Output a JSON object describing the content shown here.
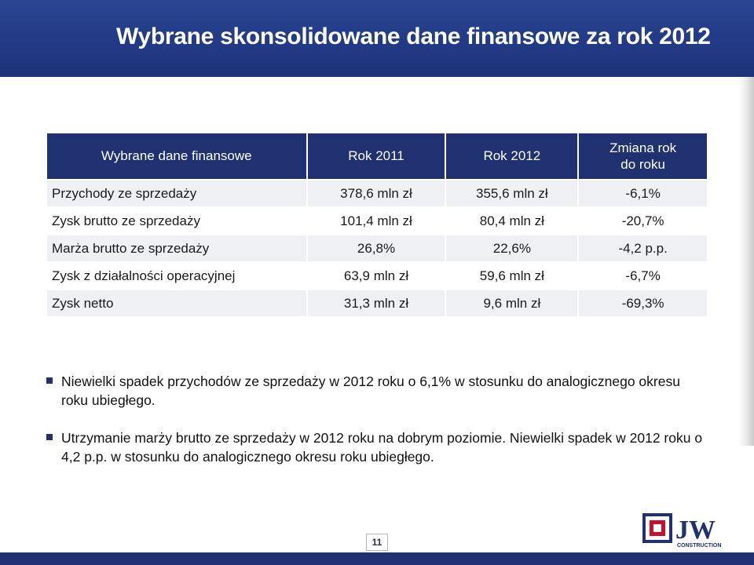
{
  "slide": {
    "title": "Wybrane skonsolidowane dane finansowe za rok 2012",
    "page_number": "11"
  },
  "table": {
    "headers": [
      "Wybrane dane finansowe",
      "Rok 2011",
      "Rok 2012",
      "Zmiana rok",
      "do roku"
    ],
    "rows": [
      [
        "Przychody ze sprzedaży",
        "378,6 mln zł",
        "355,6 mln zł",
        "-6,1%"
      ],
      [
        "Zysk brutto ze sprzedaży",
        "101,4 mln zł",
        "80,4 mln zł",
        "-20,7%"
      ],
      [
        "Marża brutto ze sprzedaży",
        "26,8%",
        "22,6%",
        "-4,2 p.p."
      ],
      [
        "Zysk z działalności operacyjnej",
        "63,9 mln zł",
        "59,6 mln zł",
        "-6,7%"
      ],
      [
        "Zysk netto",
        "31,3 mln zł",
        "9,6 mln zł",
        "-69,3%"
      ]
    ]
  },
  "bullets": [
    "Niewielki spadek przychodów ze sprzedaży w 2012 roku o 6,1% w stosunku do analogicznego okresu roku ubiegłego.",
    "Utrzymanie marży brutto ze sprzedaży w 2012 roku na dobrym poziomie. Niewielki spadek w 2012 roku o 4,2 p.p. w stosunku do analogicznego okresu roku ubiegłego."
  ],
  "logo": {
    "text": "JW",
    "subtext": "CONSTRUCTION"
  },
  "colors": {
    "title_bar": "#223a85",
    "table_header": "#1f3170",
    "row_shade": "#eef0f4",
    "logo_red": "#c8102e",
    "logo_blue": "#1f3170"
  }
}
